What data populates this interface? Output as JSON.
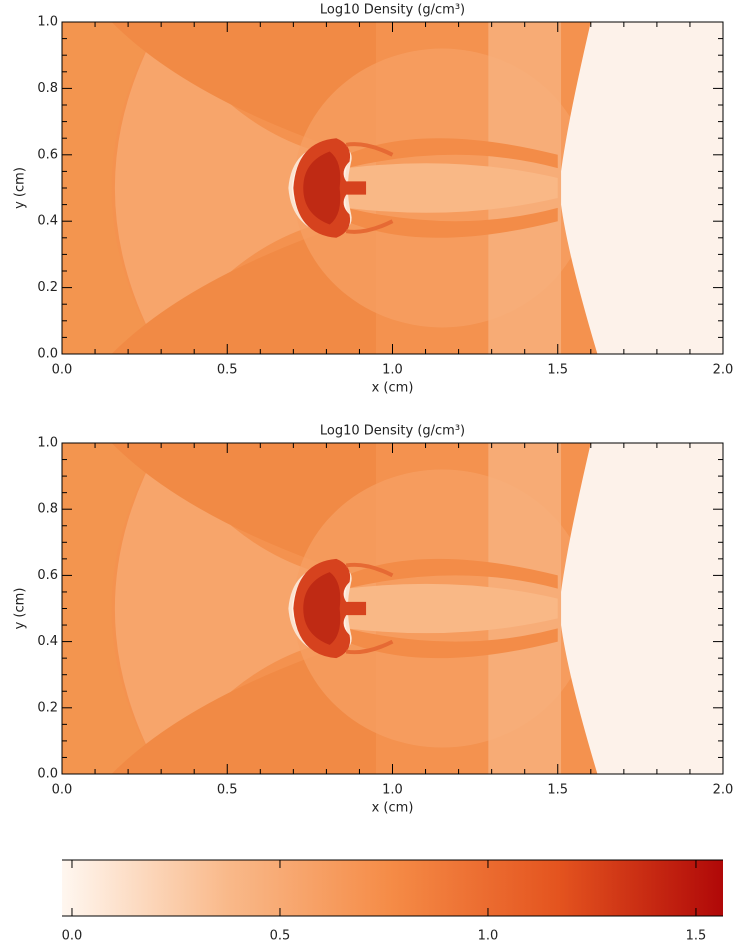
{
  "chart_data": [
    {
      "type": "heatmap",
      "title": "Log10 Density (g/cm³)",
      "xlabel": "x (cm)",
      "ylabel": "y (cm)",
      "xlim": [
        0,
        2
      ],
      "ylim": [
        0,
        1
      ],
      "xticks": [
        {
          "value": 0,
          "label": "0.0"
        },
        {
          "value": 0.5,
          "label": "0.5"
        },
        {
          "value": 1,
          "label": "1.0"
        },
        {
          "value": 1.5,
          "label": "1.5"
        },
        {
          "value": 2,
          "label": "2.0"
        }
      ],
      "yticks": [
        {
          "value": 0,
          "label": "0.0"
        },
        {
          "value": 0.2,
          "label": "0.2"
        },
        {
          "value": 0.4,
          "label": "0.4"
        },
        {
          "value": 0.6,
          "label": "0.6"
        },
        {
          "value": 0.8,
          "label": "0.8"
        },
        {
          "value": 1,
          "label": "1.0"
        }
      ]
    },
    {
      "type": "heatmap",
      "title": "Log10 Density (g/cm³)",
      "xlabel": "x (cm)",
      "ylabel": "y (cm)",
      "xlim": [
        0,
        2
      ],
      "ylim": [
        0,
        1
      ],
      "xticks": [
        {
          "value": 0,
          "label": "0.0"
        },
        {
          "value": 0.5,
          "label": "0.5"
        },
        {
          "value": 1,
          "label": "1.0"
        },
        {
          "value": 1.5,
          "label": "1.5"
        },
        {
          "value": 2,
          "label": "2.0"
        }
      ],
      "yticks": [
        {
          "value": 0,
          "label": "0.0"
        },
        {
          "value": 0.2,
          "label": "0.2"
        },
        {
          "value": 0.4,
          "label": "0.4"
        },
        {
          "value": 0.6,
          "label": "0.6"
        },
        {
          "value": 0.8,
          "label": "0.8"
        },
        {
          "value": 1,
          "label": "1.0"
        }
      ]
    },
    {
      "type": "colorbar",
      "xlim": [
        -0.024,
        1.565
      ],
      "xticks": [
        {
          "value": 0,
          "label": "0.0"
        },
        {
          "value": 0.5,
          "label": "0.5"
        },
        {
          "value": 1,
          "label": "1.0"
        },
        {
          "value": 1.5,
          "label": "1.5"
        }
      ],
      "colors": [
        "#fff7f0",
        "#f9b98a",
        "#f58b46",
        "#e4541f",
        "#b00808"
      ]
    }
  ]
}
